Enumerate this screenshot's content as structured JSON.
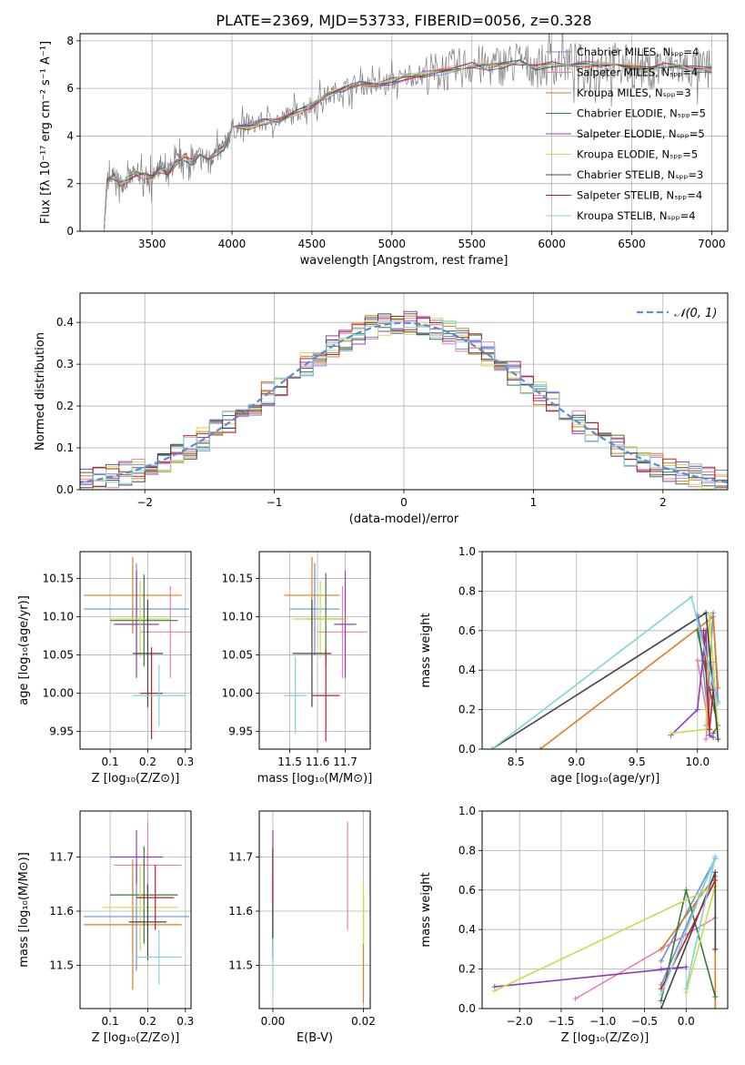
{
  "figure": {
    "title": "PLATE=2369, MJD=53733, FIBERID=0056, z=0.328"
  },
  "legend_entries": [
    {
      "label": "Chabrier MILES, Nₛₚₚ=4",
      "color": "#6b8fd6"
    },
    {
      "label": "Salpeter MILES, Nₛₚₚ=4",
      "color": "#e87fb4"
    },
    {
      "label": "Kroupa MILES, Nₛₚₚ=3",
      "color": "#e07b22"
    },
    {
      "label": "Chabrier ELODIE, Nₛₚₚ=5",
      "color": "#3a7a3a"
    },
    {
      "label": "Salpeter ELODIE, Nₛₚₚ=5",
      "color": "#8e3fb8"
    },
    {
      "label": "Kroupa ELODIE, Nₛₚₚ=5",
      "color": "#c7dd4a"
    },
    {
      "label": "Chabrier STELIB, Nₛₚₚ=3",
      "color": "#444444"
    },
    {
      "label": "Salpeter STELIB, Nₛₚₚ=4",
      "color": "#c0202a"
    },
    {
      "label": "Kroupa STELIB, Nₛₚₚ=4",
      "color": "#7fd3de"
    }
  ],
  "chart_data": [
    {
      "id": "spectrum",
      "type": "line",
      "xlabel": "wavelength [Angstrom, rest frame]",
      "ylabel": "Flux [fλ 10⁻¹⁷ erg cm⁻² s⁻¹ A⁻¹]",
      "xlim": [
        3050,
        7100
      ],
      "ylim": [
        0,
        8.3
      ],
      "xticks": [
        3500,
        4000,
        4500,
        5000,
        5500,
        6000,
        6500,
        7000
      ],
      "yticks": [
        0,
        2,
        4,
        6,
        8
      ],
      "data_color": "#808080",
      "x": [
        3200,
        3220,
        3260,
        3300,
        3350,
        3400,
        3450,
        3500,
        3550,
        3600,
        3650,
        3700,
        3750,
        3800,
        3850,
        3900,
        3950,
        4000,
        4100,
        4200,
        4300,
        4400,
        4500,
        4600,
        4700,
        4800,
        4900,
        5000,
        5100,
        5200,
        5300,
        5400,
        5500,
        5600,
        5700,
        5800,
        5900,
        6000,
        6100,
        6200,
        6300,
        6400,
        6500,
        6600,
        6700,
        6800,
        6900,
        7000
      ],
      "y": [
        0,
        2.1,
        2.3,
        2.0,
        2.2,
        2.4,
        2.3,
        2.2,
        2.6,
        2.5,
        2.9,
        3.1,
        2.9,
        3.2,
        3.0,
        3.3,
        3.5,
        4.3,
        4.4,
        4.6,
        4.7,
        5.0,
        5.3,
        5.7,
        6.0,
        6.2,
        6.1,
        6.3,
        6.5,
        6.6,
        6.7,
        6.8,
        7.0,
        6.9,
        7.0,
        7.1,
        6.9,
        7.0,
        7.1,
        7.0,
        7.0,
        7.1,
        6.9,
        6.8,
        7.0,
        6.9,
        6.8,
        6.8
      ]
    },
    {
      "id": "residuals",
      "type": "line",
      "xlabel": "(data-model)/error",
      "ylabel": "Normed distribution",
      "xlim": [
        -2.5,
        2.5
      ],
      "ylim": [
        0,
        0.47
      ],
      "xticks": [
        -2,
        -1,
        0,
        1,
        2
      ],
      "yticks": [
        0.0,
        0.1,
        0.2,
        0.3,
        0.4
      ],
      "legend_label": "𝒩(0, 1)",
      "gaussian_color": "#5b8bd0"
    },
    {
      "id": "age-vs-Z",
      "type": "scatter",
      "xlabel": "Z [log₁₀(Z/Z⊙)]",
      "ylabel": "age  [log₁₀(age/yr)]",
      "xlim": [
        0.02,
        0.315
      ],
      "ylim": [
        9.927,
        10.185
      ],
      "xticks": [
        0.1,
        0.2,
        0.3
      ],
      "yticks": [
        9.95,
        10.0,
        10.05,
        10.1,
        10.15
      ],
      "points": [
        {
          "x": 0.17,
          "xerr": 0.14,
          "y": 10.11,
          "yerr": 0.06
        },
        {
          "x": 0.26,
          "xerr": 0.08,
          "y": 10.08,
          "yerr": 0.06
        },
        {
          "x": 0.16,
          "xerr": 0.13,
          "y": 10.128,
          "yerr": 0.05
        },
        {
          "x": 0.19,
          "xerr": 0.09,
          "y": 10.095,
          "yerr": 0.06
        },
        {
          "x": 0.17,
          "xerr": 0.06,
          "y": 10.09,
          "yerr": 0.07
        },
        {
          "x": 0.18,
          "xerr": 0.08,
          "y": 10.097,
          "yerr": 0.05
        },
        {
          "x": 0.2,
          "xerr": 0.04,
          "y": 10.052,
          "yerr": 0.07
        },
        {
          "x": 0.21,
          "xerr": 0.03,
          "y": 10.0,
          "yerr": 0.06
        },
        {
          "x": 0.23,
          "xerr": 0.07,
          "y": 9.997,
          "yerr": 0.04
        }
      ]
    },
    {
      "id": "age-vs-mass",
      "type": "scatter",
      "xlabel": "mass [log₁₀(M/M⊙)]",
      "ylabel": "",
      "xlim": [
        11.39,
        11.79
      ],
      "ylim": [
        9.927,
        10.185
      ],
      "xticks": [
        11.5,
        11.6,
        11.7
      ],
      "yticks": [
        9.95,
        10.0,
        10.05,
        10.1,
        10.15
      ],
      "points": [
        {
          "x": 11.59,
          "xerr": 0.09,
          "y": 10.11,
          "yerr": 0.06
        },
        {
          "x": 11.69,
          "xerr": 0.09,
          "y": 10.08,
          "yerr": 0.06
        },
        {
          "x": 11.58,
          "xerr": 0.1,
          "y": 10.128,
          "yerr": 0.05
        },
        {
          "x": 11.63,
          "xerr": 0.07,
          "y": 10.097,
          "yerr": 0.06
        },
        {
          "x": 11.7,
          "xerr": 0.04,
          "y": 10.09,
          "yerr": 0.07
        },
        {
          "x": 11.61,
          "xerr": 0.1,
          "y": 10.097,
          "yerr": 0.05
        },
        {
          "x": 11.58,
          "xerr": 0.07,
          "y": 10.052,
          "yerr": 0.07
        },
        {
          "x": 11.63,
          "xerr": 0.05,
          "y": 9.997,
          "yerr": 0.06
        },
        {
          "x": 11.52,
          "xerr": 0.04,
          "y": 9.997,
          "yerr": 0.05
        }
      ]
    },
    {
      "id": "mass-vs-Z",
      "type": "scatter",
      "xlabel": "Z [log₁₀(Z/Z⊙)]",
      "ylabel": "mass [log₁₀(M/M⊙)]",
      "xlim": [
        0.02,
        0.315
      ],
      "ylim": [
        11.42,
        11.785
      ],
      "xticks": [
        0.1,
        0.2,
        0.3
      ],
      "yticks": [
        11.5,
        11.6,
        11.7
      ],
      "points": [
        {
          "x": 0.17,
          "xerr": 0.14,
          "y": 11.59,
          "yerr": 0.1
        },
        {
          "x": 0.2,
          "xerr": 0.09,
          "y": 11.685,
          "yerr": 0.08
        },
        {
          "x": 0.16,
          "xerr": 0.13,
          "y": 11.575,
          "yerr": 0.12
        },
        {
          "x": 0.19,
          "xerr": 0.09,
          "y": 11.63,
          "yerr": 0.09
        },
        {
          "x": 0.17,
          "xerr": 0.07,
          "y": 11.7,
          "yerr": 0.05
        },
        {
          "x": 0.18,
          "xerr": 0.1,
          "y": 11.607,
          "yerr": 0.08
        },
        {
          "x": 0.2,
          "xerr": 0.05,
          "y": 11.58,
          "yerr": 0.07
        },
        {
          "x": 0.22,
          "xerr": 0.05,
          "y": 11.625,
          "yerr": 0.06
        },
        {
          "x": 0.23,
          "xerr": 0.06,
          "y": 11.515,
          "yerr": 0.05
        }
      ]
    },
    {
      "id": "mass-vs-EBV",
      "type": "scatter",
      "xlabel": "E(B-V)",
      "ylabel": "",
      "xlim": [
        -0.003,
        0.0215
      ],
      "ylim": [
        11.42,
        11.785
      ],
      "xticks": [
        0.0,
        0.02
      ],
      "yticks": [
        11.5,
        11.6,
        11.7
      ],
      "points": [
        {
          "x": 0.0,
          "xerr": 0,
          "y": 11.59,
          "yerr": 0.08
        },
        {
          "x": 0.0165,
          "xerr": 0,
          "y": 11.665,
          "yerr": 0.1
        },
        {
          "x": 0.02,
          "xerr": 0,
          "y": 11.53,
          "yerr": 0.1
        },
        {
          "x": 0.0,
          "xerr": 0,
          "y": 11.63,
          "yerr": 0.09
        },
        {
          "x": 0.0,
          "xerr": 0,
          "y": 11.7,
          "yerr": 0.05
        },
        {
          "x": 0.02,
          "xerr": 0,
          "y": 11.6,
          "yerr": 0.06
        },
        {
          "x": 0.0,
          "xerr": 0,
          "y": 11.58,
          "yerr": 0.07
        },
        {
          "x": 0.0,
          "xerr": 0,
          "y": 11.665,
          "yerr": 0.05
        },
        {
          "x": 0.0,
          "xerr": 0,
          "y": 11.5,
          "yerr": 0.05
        }
      ]
    },
    {
      "id": "weight-vs-age",
      "type": "line",
      "xlabel": "age  [log₁₀(age/yr)]",
      "ylabel": "mass weight",
      "xlim": [
        8.22,
        10.25
      ],
      "ylim": [
        0,
        1.0
      ],
      "xticks": [
        8.5,
        9.0,
        9.5,
        10.0
      ],
      "yticks": [
        0.0,
        0.2,
        0.4,
        0.6,
        0.8,
        1.0
      ],
      "series": [
        {
          "x": [
            10.07,
            10.13,
            10.17,
            10.0,
            10.1
          ],
          "y": [
            0.12,
            0.69,
            0.24,
            0.68,
            0.1
          ]
        },
        {
          "x": [
            10.07,
            10.13,
            10.0,
            10.1
          ],
          "y": [
            0.05,
            0.44,
            0.45,
            0.1
          ]
        },
        {
          "x": [
            8.7,
            10.13,
            10.17
          ],
          "y": [
            0.0,
            0.67,
            0.31
          ]
        },
        {
          "x": [
            10.0,
            10.1,
            10.17,
            10.13
          ],
          "y": [
            0.6,
            0.3,
            0.12,
            0.08
          ]
        },
        {
          "x": [
            9.78,
            10.0,
            10.07,
            10.1,
            10.13
          ],
          "y": [
            0.07,
            0.2,
            0.6,
            0.07,
            0.06
          ]
        },
        {
          "x": [
            9.78,
            10.07,
            10.1,
            10.17
          ],
          "y": [
            0.08,
            0.1,
            0.68,
            0.1
          ]
        },
        {
          "x": [
            8.3,
            10.07,
            10.13,
            10.17
          ],
          "y": [
            0.0,
            0.69,
            0.3,
            0.05
          ]
        },
        {
          "x": [
            10.05,
            10.1,
            10.13
          ],
          "y": [
            0.6,
            0.1,
            0.3
          ]
        },
        {
          "x": [
            8.3,
            9.95,
            10.17
          ],
          "y": [
            0.0,
            0.77,
            0.23
          ]
        }
      ]
    },
    {
      "id": "weight-vs-Z",
      "type": "line",
      "xlabel": "Z [log₁₀(Z/Z⊙)]",
      "ylabel": "mass weight",
      "xlim": [
        -2.45,
        0.5
      ],
      "ylim": [
        0,
        1.0
      ],
      "xticks": [
        -2.0,
        -1.5,
        -1.0,
        -0.5,
        0.0
      ],
      "yticks": [
        0.0,
        0.2,
        0.4,
        0.6,
        0.8,
        1.0
      ],
      "series": [
        {
          "x": [
            -0.3,
            0.35,
            -0.3
          ],
          "y": [
            0.24,
            0.76,
            0.12
          ]
        },
        {
          "x": [
            -1.33,
            0.35,
            0.35
          ],
          "y": [
            0.05,
            0.46,
            0.3
          ]
        },
        {
          "x": [
            -0.3,
            0.35,
            0.35
          ],
          "y": [
            0.3,
            0.67,
            0.0
          ]
        },
        {
          "x": [
            -0.3,
            0.0,
            0.35
          ],
          "y": [
            0.04,
            0.6,
            0.06
          ]
        },
        {
          "x": [
            -2.3,
            0.0,
            -0.3
          ],
          "y": [
            0.11,
            0.21,
            0.2
          ]
        },
        {
          "x": [
            -2.3,
            0.35,
            0.0
          ],
          "y": [
            0.09,
            0.62,
            0.08
          ]
        },
        {
          "x": [
            -0.3,
            0.35,
            0.35
          ],
          "y": [
            0.0,
            0.69,
            0.3
          ]
        },
        {
          "x": [
            -0.3,
            0.35
          ],
          "y": [
            0.1,
            0.65
          ]
        },
        {
          "x": [
            -0.3,
            0.35,
            0.0
          ],
          "y": [
            0.07,
            0.77,
            0.1
          ]
        }
      ]
    }
  ]
}
